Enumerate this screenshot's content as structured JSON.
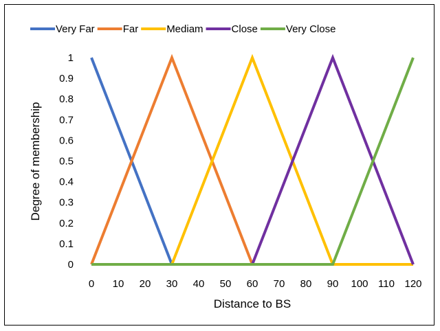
{
  "chart_data": {
    "type": "line",
    "xlabel": "Distance to BS",
    "ylabel": "Degree of membership",
    "xlim": [
      0,
      120
    ],
    "ylim": [
      0,
      1
    ],
    "x_ticks": [
      "0",
      "10",
      "20",
      "30",
      "40",
      "50",
      "60",
      "70",
      "80",
      "90",
      "100",
      "110",
      "120"
    ],
    "y_ticks": [
      "0",
      "0.1",
      "0.2",
      "0.3",
      "0.4",
      "0.5",
      "0.6",
      "0.7",
      "0.8",
      "0.9",
      "1"
    ],
    "grid": false,
    "legend_position": "top",
    "series": [
      {
        "name": "Very Far",
        "color": "#4472C4",
        "points": [
          [
            0,
            1
          ],
          [
            30,
            0
          ],
          [
            120,
            0
          ]
        ]
      },
      {
        "name": "Far",
        "color": "#ED7D31",
        "points": [
          [
            0,
            0
          ],
          [
            30,
            1
          ],
          [
            60,
            0
          ],
          [
            120,
            0
          ]
        ]
      },
      {
        "name": "Mediam",
        "color": "#FFC000",
        "points": [
          [
            0,
            0
          ],
          [
            30,
            0
          ],
          [
            60,
            1
          ],
          [
            90,
            0
          ],
          [
            120,
            0
          ]
        ]
      },
      {
        "name": "Close",
        "color": "#7030A0",
        "points": [
          [
            0,
            0
          ],
          [
            60,
            0
          ],
          [
            90,
            1
          ],
          [
            120,
            0
          ]
        ]
      },
      {
        "name": "Very Close",
        "color": "#70AD47",
        "points": [
          [
            0,
            0
          ],
          [
            90,
            0
          ],
          [
            120,
            1
          ]
        ]
      }
    ]
  }
}
